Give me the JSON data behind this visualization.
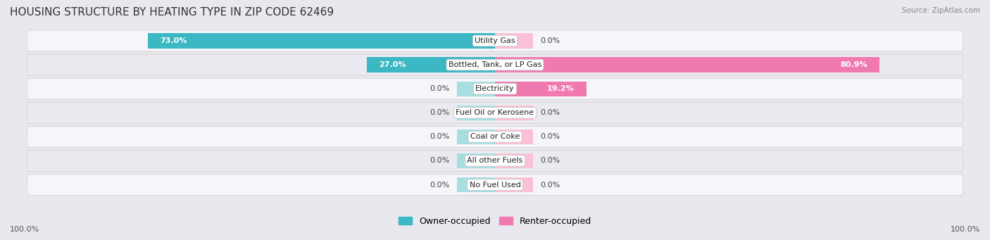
{
  "title": "HOUSING STRUCTURE BY HEATING TYPE IN ZIP CODE 62469",
  "source": "Source: ZipAtlas.com",
  "categories": [
    "Utility Gas",
    "Bottled, Tank, or LP Gas",
    "Electricity",
    "Fuel Oil or Kerosene",
    "Coal or Coke",
    "All other Fuels",
    "No Fuel Used"
  ],
  "owner_values": [
    73.0,
    27.0,
    0.0,
    0.0,
    0.0,
    0.0,
    0.0
  ],
  "renter_values": [
    0.0,
    80.9,
    19.2,
    0.0,
    0.0,
    0.0,
    0.0
  ],
  "owner_color": "#3bb8c3",
  "renter_color": "#f07ab0",
  "renter_stub_color": "#f9c0d8",
  "owner_stub_color": "#a8dde2",
  "background_color": "#e8e8ee",
  "row_light": "#f5f5fa",
  "row_dark": "#eaeaf0",
  "axis_label_left": "100.0%",
  "axis_label_right": "100.0%",
  "legend_owner": "Owner-occupied",
  "legend_renter": "Renter-occupied",
  "bar_height": 0.62,
  "stub_size": 8.0,
  "xlim": 100,
  "title_fontsize": 11,
  "label_fontsize": 8,
  "cat_fontsize": 8
}
